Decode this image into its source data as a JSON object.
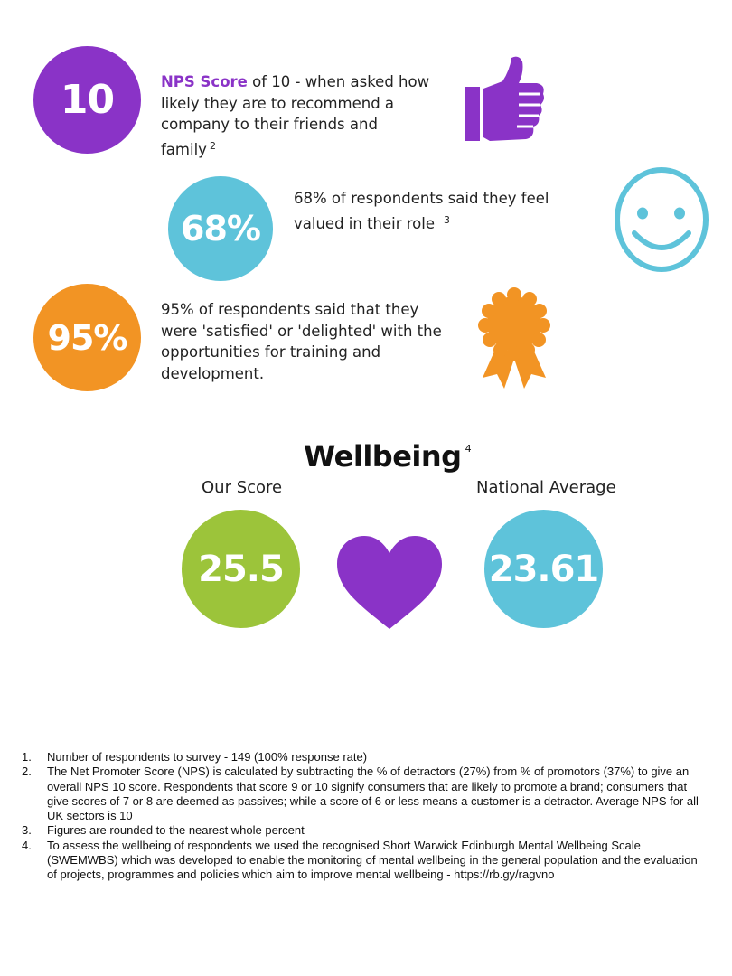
{
  "colors": {
    "purple": "#8a33c7",
    "cyan": "#5ec3da",
    "orange": "#f29424",
    "green": "#9cc43a"
  },
  "stats": [
    {
      "value": "10",
      "highlight": "NPS Score",
      "text": " of 10 - when asked how likely they are to recommend a company to their friends and family",
      "ref": "2",
      "icon": "thumbs-up-icon"
    },
    {
      "value": "68%",
      "text": "68% of respondents said they feel valued in their role",
      "ref": "3",
      "icon": "smiley-icon"
    },
    {
      "value": "95%",
      "text": "95% of respondents said that they were 'satisfied' or 'delighted' with the opportunities for training and development.",
      "icon": "rosette-award-icon"
    }
  ],
  "wellbeing": {
    "title": "Wellbeing",
    "ref": "4",
    "our_score_label": "Our Score",
    "our_score": "25.5",
    "national_label": "National Average",
    "national_score": "23.61",
    "icon": "heart-icon"
  },
  "footnotes": [
    {
      "num": "1.",
      "text": "Number of respondents to survey - 149 (100% response rate)"
    },
    {
      "num": "2.",
      "text": "The Net Promoter Score (NPS) is calculated by subtracting the % of detractors (27%) from % of promotors (37%) to give an overall NPS 10 score. Respondents that score 9 or 10 signify consumers that are likely to promote a brand; consumers that give scores of 7 or 8 are deemed as passives; while a score of 6 or less means a customer is a detractor.  Average NPS for all UK sectors is 10"
    },
    {
      "num": "3.",
      "text": "Figures are rounded to the nearest whole percent"
    },
    {
      "num": "4.",
      "text": "To assess the wellbeing of respondents we used the recognised Short Warwick Edinburgh Mental Wellbeing Scale (SWEMWBS) which was developed to enable the monitoring of mental wellbeing in the general population and the evaluation of projects, programmes and policies which aim to improve mental wellbeing - https://rb.gy/ragvno"
    }
  ]
}
